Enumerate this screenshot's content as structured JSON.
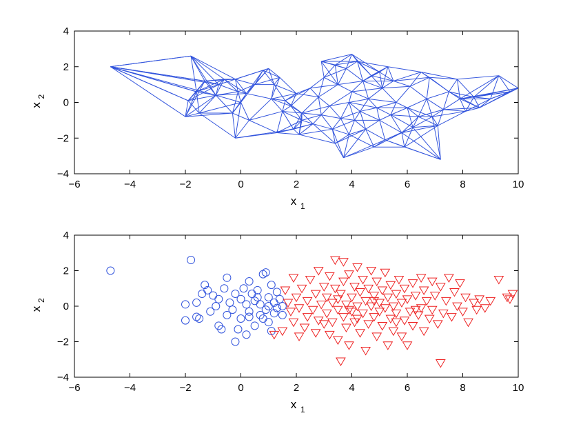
{
  "chart_data": [
    {
      "type": "network",
      "xlabel": "x",
      "xlabel_sub": "1",
      "ylabel": "x",
      "ylabel_sub": "2",
      "xlim": [
        -6,
        10
      ],
      "ylim": [
        -4,
        4
      ],
      "xticks": [
        "−6",
        "−4",
        "−2",
        "0",
        "2",
        "4",
        "6",
        "8",
        "10"
      ],
      "yticks": [
        "−4",
        "−2",
        "0",
        "2",
        "4"
      ],
      "grid": false,
      "edge_color": "#3355dd",
      "series": [
        {
          "nodes": [
            [
              -4.7,
              2.0
            ],
            [
              -1.8,
              2.6
            ],
            [
              -1.6,
              0.6
            ],
            [
              -1.9,
              0.1
            ],
            [
              -2.0,
              -0.8
            ],
            [
              -1.5,
              -0.6
            ],
            [
              -1.3,
              1.2
            ],
            [
              -0.9,
              0.4
            ],
            [
              -0.8,
              1.0
            ],
            [
              -0.6,
              1.3
            ],
            [
              -0.2,
              1.3
            ],
            [
              -0.1,
              0.6
            ],
            [
              0.0,
              0.0
            ],
            [
              -0.3,
              -0.6
            ],
            [
              -0.2,
              -2.0
            ],
            [
              0.3,
              -1.0
            ],
            [
              0.2,
              0.5
            ],
            [
              0.5,
              1.0
            ],
            [
              0.8,
              1.8
            ],
            [
              1.0,
              1.9
            ],
            [
              1.2,
              1.0
            ],
            [
              1.1,
              0.2
            ],
            [
              1.5,
              -0.5
            ],
            [
              1.6,
              0.1
            ],
            [
              1.4,
              1.4
            ],
            [
              1.8,
              -0.2
            ],
            [
              2.0,
              0.5
            ],
            [
              2.2,
              -0.6
            ],
            [
              2.5,
              0.8
            ],
            [
              2.2,
              -1.0
            ],
            [
              1.9,
              -1.5
            ],
            [
              1.3,
              -1.7
            ],
            [
              2.1,
              -1.8
            ],
            [
              2.6,
              -1.2
            ],
            [
              2.9,
              -0.7
            ],
            [
              2.8,
              0.3
            ],
            [
              3.0,
              1.4
            ],
            [
              3.4,
              2.1
            ],
            [
              3.5,
              1.0
            ],
            [
              3.2,
              -0.2
            ],
            [
              3.6,
              -0.9
            ],
            [
              3.4,
              -2.3
            ],
            [
              3.7,
              -3.1
            ],
            [
              3.9,
              -1.8
            ],
            [
              4.0,
              0.6
            ],
            [
              3.8,
              1.9
            ],
            [
              4.2,
              2.3
            ],
            [
              4.0,
              2.7
            ],
            [
              4.4,
              1.2
            ],
            [
              4.6,
              0.2
            ],
            [
              4.3,
              -0.5
            ],
            [
              4.5,
              -1.5
            ],
            [
              4.8,
              -2.5
            ],
            [
              5.0,
              -1.0
            ],
            [
              5.1,
              0.8
            ],
            [
              5.0,
              1.7
            ],
            [
              5.3,
              2.0
            ],
            [
              5.5,
              1.2
            ],
            [
              5.6,
              0.0
            ],
            [
              5.4,
              -0.7
            ],
            [
              5.8,
              -1.7
            ],
            [
              5.9,
              -2.5
            ],
            [
              6.2,
              -1.4
            ],
            [
              6.0,
              -0.3
            ],
            [
              6.1,
              0.9
            ],
            [
              6.5,
              1.7
            ],
            [
              6.8,
              1.4
            ],
            [
              6.7,
              0.2
            ],
            [
              6.9,
              -0.8
            ],
            [
              7.2,
              -3.2
            ],
            [
              7.1,
              -1.3
            ],
            [
              7.3,
              -0.4
            ],
            [
              7.5,
              0.6
            ],
            [
              7.8,
              1.3
            ],
            [
              7.9,
              0.2
            ],
            [
              8.1,
              -0.5
            ],
            [
              8.4,
              0.3
            ],
            [
              8.6,
              -0.3
            ],
            [
              9.0,
              0.2
            ],
            [
              9.3,
              1.5
            ],
            [
              9.7,
              0.6
            ],
            [
              10.0,
              0.8
            ],
            [
              2.9,
              2.3
            ],
            [
              3.3,
              -1.5
            ],
            [
              4.7,
              1.5
            ],
            [
              5.2,
              -2.1
            ],
            [
              6.4,
              -0.8
            ],
            [
              4.9,
              -0.3
            ],
            [
              3.9,
              0.0
            ],
            [
              4.1,
              -1.0
            ]
          ]
        }
      ]
    },
    {
      "type": "scatter",
      "xlabel": "x",
      "xlabel_sub": "1",
      "ylabel": "x",
      "ylabel_sub": "2",
      "xlim": [
        -6,
        10
      ],
      "ylim": [
        -4,
        4
      ],
      "xticks": [
        "−6",
        "−4",
        "−2",
        "0",
        "2",
        "4",
        "6",
        "8",
        "10"
      ],
      "yticks": [
        "−4",
        "−2",
        "0",
        "2",
        "4"
      ],
      "grid": false,
      "series": [
        {
          "marker": "circle",
          "color": "#3355dd",
          "points": [
            [
              -4.7,
              2.0
            ],
            [
              -1.8,
              2.6
            ],
            [
              -2.0,
              0.1
            ],
            [
              -2.0,
              -0.8
            ],
            [
              -1.6,
              -0.6
            ],
            [
              -1.5,
              -0.7
            ],
            [
              -1.6,
              0.2
            ],
            [
              -1.4,
              0.7
            ],
            [
              -1.3,
              1.2
            ],
            [
              -1.2,
              0.9
            ],
            [
              -1.1,
              -0.3
            ],
            [
              -0.9,
              0.0
            ],
            [
              -0.8,
              -1.1
            ],
            [
              -0.7,
              -1.3
            ],
            [
              -0.8,
              0.4
            ],
            [
              -0.6,
              1.0
            ],
            [
              -0.5,
              1.6
            ],
            [
              -0.4,
              0.2
            ],
            [
              -0.3,
              -0.2
            ],
            [
              -0.2,
              0.7
            ],
            [
              -0.2,
              -2.0
            ],
            [
              -0.1,
              -1.3
            ],
            [
              0.0,
              -0.7
            ],
            [
              0.0,
              0.4
            ],
            [
              0.1,
              1.0
            ],
            [
              0.2,
              0.1
            ],
            [
              0.3,
              1.4
            ],
            [
              0.3,
              -0.3
            ],
            [
              0.4,
              0.7
            ],
            [
              0.5,
              -1.1
            ],
            [
              0.5,
              0.3
            ],
            [
              0.6,
              0.9
            ],
            [
              0.7,
              -0.5
            ],
            [
              0.7,
              0.1
            ],
            [
              0.8,
              1.8
            ],
            [
              0.9,
              1.9
            ],
            [
              0.9,
              -0.2
            ],
            [
              1.0,
              0.5
            ],
            [
              1.0,
              -0.9
            ],
            [
              1.1,
              1.2
            ],
            [
              1.2,
              0.2
            ],
            [
              1.2,
              -0.4
            ],
            [
              1.3,
              0.8
            ],
            [
              1.3,
              -0.1
            ],
            [
              1.4,
              0.4
            ],
            [
              1.5,
              -0.5
            ],
            [
              1.5,
              0.0
            ],
            [
              1.1,
              -1.4
            ],
            [
              0.3,
              -0.6
            ],
            [
              0.6,
              0.5
            ],
            [
              -0.5,
              -0.5
            ],
            [
              0.8,
              -0.7
            ],
            [
              0.2,
              -1.6
            ],
            [
              1.0,
              0.0
            ],
            [
              -1.0,
              0.6
            ]
          ]
        },
        {
          "marker": "triangle-down",
          "color": "#ee2222",
          "points": [
            [
              1.2,
              -1.6
            ],
            [
              1.5,
              -1.4
            ],
            [
              1.6,
              0.9
            ],
            [
              1.7,
              0.2
            ],
            [
              1.8,
              -0.3
            ],
            [
              1.9,
              1.6
            ],
            [
              1.9,
              -0.9
            ],
            [
              2.0,
              0.5
            ],
            [
              2.1,
              -1.7
            ],
            [
              2.1,
              -0.1
            ],
            [
              2.2,
              1.0
            ],
            [
              2.3,
              -1.2
            ],
            [
              2.4,
              0.3
            ],
            [
              2.4,
              -0.6
            ],
            [
              2.5,
              1.5
            ],
            [
              2.6,
              -0.2
            ],
            [
              2.7,
              0.7
            ],
            [
              2.7,
              -1.5
            ],
            [
              2.8,
              2.0
            ],
            [
              2.8,
              -0.8
            ],
            [
              2.9,
              0.1
            ],
            [
              3.0,
              1.1
            ],
            [
              3.0,
              -1.0
            ],
            [
              3.1,
              0.5
            ],
            [
              3.1,
              -0.4
            ],
            [
              3.2,
              1.7
            ],
            [
              3.2,
              -1.6
            ],
            [
              3.3,
              0.2
            ],
            [
              3.3,
              -0.9
            ],
            [
              3.4,
              2.6
            ],
            [
              3.4,
              1.0
            ],
            [
              3.5,
              -0.2
            ],
            [
              3.5,
              -1.9
            ],
            [
              3.6,
              0.7
            ],
            [
              3.6,
              -3.1
            ],
            [
              3.7,
              2.5
            ],
            [
              3.7,
              1.4
            ],
            [
              3.7,
              -0.6
            ],
            [
              3.8,
              0.1
            ],
            [
              3.8,
              -1.2
            ],
            [
              3.9,
              1.8
            ],
            [
              3.9,
              -2.2
            ],
            [
              4.0,
              0.5
            ],
            [
              4.0,
              -0.3
            ],
            [
              4.1,
              1.1
            ],
            [
              4.1,
              -0.9
            ],
            [
              4.2,
              2.2
            ],
            [
              4.2,
              0.0
            ],
            [
              4.3,
              -1.5
            ],
            [
              4.3,
              0.8
            ],
            [
              4.4,
              -0.4
            ],
            [
              4.4,
              1.5
            ],
            [
              4.5,
              0.3
            ],
            [
              4.5,
              -2.5
            ],
            [
              4.6,
              -1.0
            ],
            [
              4.6,
              1.0
            ],
            [
              4.7,
              0.0
            ],
            [
              4.7,
              2.0
            ],
            [
              4.8,
              -0.6
            ],
            [
              4.8,
              0.6
            ],
            [
              4.9,
              -1.7
            ],
            [
              4.9,
              1.4
            ],
            [
              5.0,
              0.2
            ],
            [
              5.0,
              -0.3
            ],
            [
              5.1,
              0.9
            ],
            [
              5.1,
              -1.1
            ],
            [
              5.2,
              1.9
            ],
            [
              5.2,
              -0.1
            ],
            [
              5.3,
              -2.2
            ],
            [
              5.3,
              0.5
            ],
            [
              5.4,
              -0.7
            ],
            [
              5.4,
              1.2
            ],
            [
              5.5,
              0.0
            ],
            [
              5.5,
              -1.4
            ],
            [
              5.6,
              0.7
            ],
            [
              5.6,
              -0.4
            ],
            [
              5.7,
              1.5
            ],
            [
              5.8,
              -1.7
            ],
            [
              5.8,
              0.2
            ],
            [
              5.9,
              -0.8
            ],
            [
              5.9,
              1.0
            ],
            [
              6.0,
              -2.2
            ],
            [
              6.0,
              0.4
            ],
            [
              6.1,
              -0.3
            ],
            [
              6.2,
              1.3
            ],
            [
              6.2,
              -1.1
            ],
            [
              6.3,
              0.6
            ],
            [
              6.4,
              -0.5
            ],
            [
              6.5,
              1.6
            ],
            [
              6.5,
              -0.1
            ],
            [
              6.6,
              0.9
            ],
            [
              6.6,
              -1.4
            ],
            [
              6.7,
              0.3
            ],
            [
              6.8,
              -0.7
            ],
            [
              6.9,
              1.4
            ],
            [
              6.9,
              -0.2
            ],
            [
              7.0,
              0.6
            ],
            [
              7.1,
              -1.0
            ],
            [
              7.2,
              -3.2
            ],
            [
              7.2,
              1.1
            ],
            [
              7.3,
              -0.4
            ],
            [
              7.4,
              0.3
            ],
            [
              7.5,
              1.6
            ],
            [
              7.6,
              -0.6
            ],
            [
              7.7,
              0.8
            ],
            [
              7.8,
              0.0
            ],
            [
              7.9,
              1.3
            ],
            [
              8.0,
              -0.3
            ],
            [
              8.1,
              0.5
            ],
            [
              8.2,
              -0.9
            ],
            [
              8.4,
              0.2
            ],
            [
              8.5,
              -0.2
            ],
            [
              8.6,
              0.4
            ],
            [
              8.8,
              -0.1
            ],
            [
              9.0,
              0.3
            ],
            [
              9.3,
              1.5
            ],
            [
              9.6,
              0.5
            ],
            [
              9.8,
              0.7
            ],
            [
              9.7,
              0.4
            ],
            [
              3.5,
              0.4
            ],
            [
              4.2,
              -0.7
            ],
            [
              4.8,
              0.3
            ],
            [
              5.6,
              -0.9
            ],
            [
              6.3,
              -0.2
            ],
            [
              3.9,
              -0.2
            ]
          ]
        }
      ]
    }
  ]
}
